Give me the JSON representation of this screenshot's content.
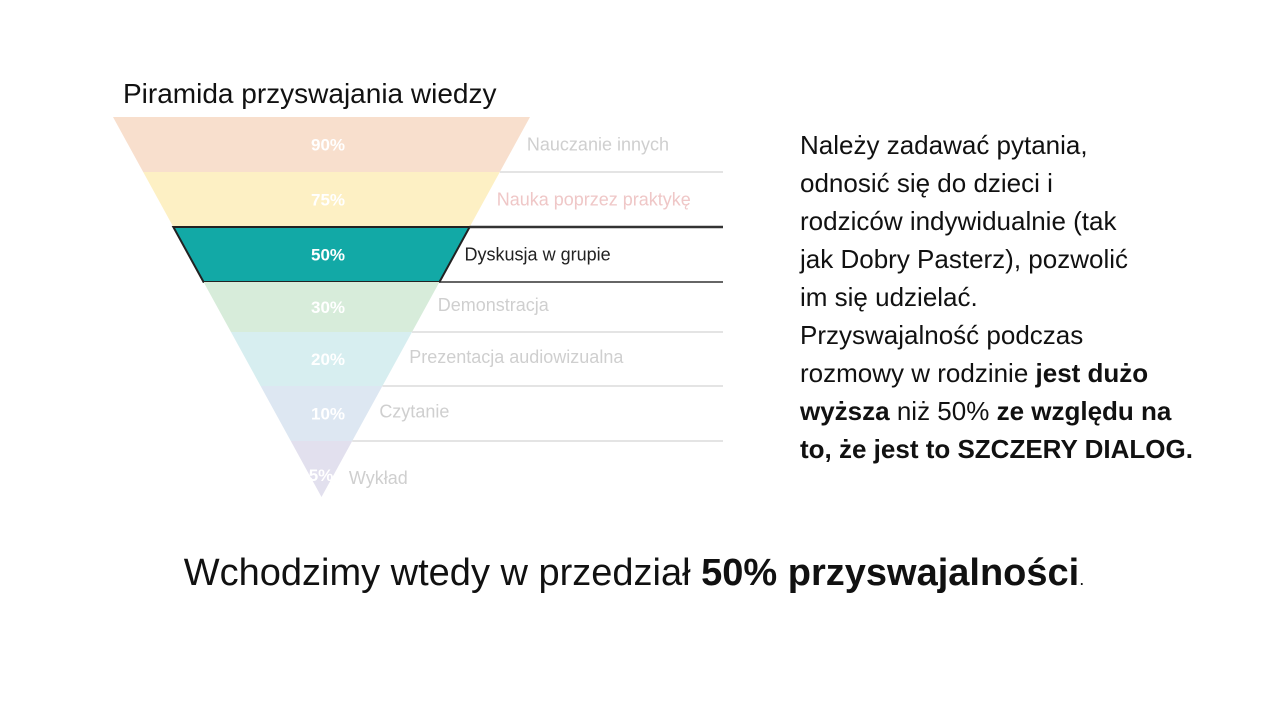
{
  "pyramid": {
    "title": "Piramida przyswajania wiedzy",
    "levels": [
      {
        "percent": "90%",
        "label": "Nauczanie innych",
        "color": "#f8dfcd",
        "highlight": false
      },
      {
        "percent": "75%",
        "label": "Nauka poprzez praktykę",
        "color": "#fdf0c4",
        "highlight": false
      },
      {
        "percent": "50%",
        "label": "Dyskusja w grupie",
        "color": "#12a9a6",
        "highlight": true
      },
      {
        "percent": "30%",
        "label": "Demonstracja",
        "color": "#d7ecda",
        "highlight": false
      },
      {
        "percent": "20%",
        "label": "Prezentacja audiowizualna",
        "color": "#d7eef0",
        "highlight": false
      },
      {
        "percent": "10%",
        "label": "Czytanie",
        "color": "#dde7f2",
        "highlight": false
      },
      {
        "percent": "5%",
        "label": "Wykład",
        "color": "#e2e0ee",
        "highlight": false
      }
    ]
  },
  "body": {
    "lines": [
      "Należy zadawać pytania,",
      "odnosić się do dzieci i",
      "rodziców indywidualnie (tak",
      "jak Dobry Pasterz), pozwolić",
      "im się udzielać.",
      "Przyswajalność podczas"
    ],
    "l7_a": "rozmowy w rodzinie ",
    "l7_b": "jest dużo",
    "l8_a": "wyższa",
    "l8_b": " niż 50% ",
    "l8_c": "ze względu na",
    "l9": "to, że jest to SZCZERY DIALOG."
  },
  "bottom": {
    "part1": "Wchodzimy wtedy w przedział ",
    "part2": "50% przyswajalności",
    "part3": "."
  }
}
